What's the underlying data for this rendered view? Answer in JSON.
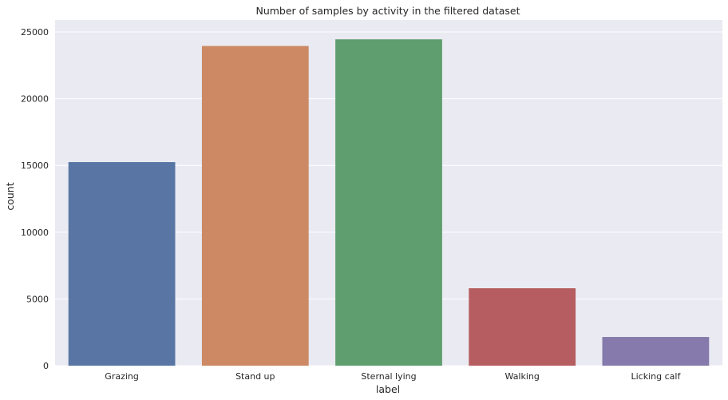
{
  "chart_data": {
    "type": "bar",
    "title": "Number of samples by activity in the filtered dataset",
    "xlabel": "label",
    "ylabel": "count",
    "categories": [
      "Grazing",
      "Stand up",
      "Sternal lying",
      "Walking",
      "Licking calf"
    ],
    "values": [
      15250,
      23950,
      24450,
      5800,
      2150
    ],
    "colors": [
      "#5875a4",
      "#cc8963",
      "#5f9e6e",
      "#b55d60",
      "#857aab"
    ],
    "ylim": [
      0,
      25900
    ],
    "yticks": [
      0,
      5000,
      10000,
      15000,
      20000,
      25000
    ],
    "ytick_labels": [
      "0",
      "5000",
      "10000",
      "15000",
      "20000",
      "25000"
    ],
    "grid": true,
    "background": "#eaeaf2",
    "grid_color": "#ffffff"
  }
}
